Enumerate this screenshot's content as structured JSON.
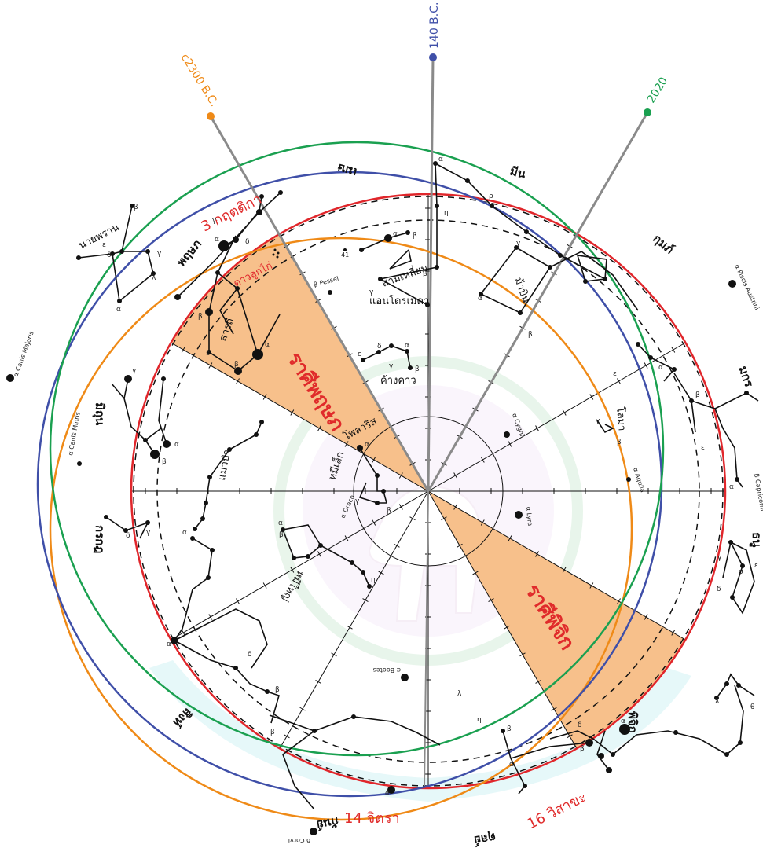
{
  "colors": {
    "c2300": "#ef8a17",
    "bc140": "#3f4fa8",
    "y2020": "#1aa050",
    "ecliptic": "#e0262b",
    "highlight": "#f7c08b",
    "line": "#111111",
    "pointer": "#8a8a8a"
  },
  "epochs": {
    "c2300": "c2300 B.C.",
    "bc140": "140 B.C.",
    "y2020": "2020"
  },
  "zodiac_labels": {
    "taurus": "ราศีพฤษภ",
    "scorpio": "ราศีพิจิก"
  },
  "red_labels": {
    "krittika": "3 กฤตติกา",
    "pleiades": "ดาวลูกไก่",
    "chitra": "14 จิตรา",
    "visakha": "16 วิสาขะ"
  },
  "zodiac_names": {
    "aries": "เมษ",
    "pisces": "มีน",
    "aquarius": "กุมภ์",
    "capricorn": "มกร",
    "sagittarius": "ธนู",
    "scorpio": "พิจิก",
    "libra": "ตุลย์",
    "virgo": "กันย์",
    "leo": "สิงห์",
    "cancer": "กรกฎ",
    "gemini": "มิถุน",
    "taurus": "พฤษภ"
  },
  "constellations": {
    "perseus": "นายพราน",
    "andromeda": "แอนโดรเมดา",
    "triangulum": "สามเหลี่ยม",
    "pegasus": "ม้าบิน",
    "cassiopeia": "ค้างคาว",
    "auriga": "สารถี",
    "cepheus": "โพลาริส",
    "ursa_minor": "หมีเล็ก",
    "ursa_major": "หมีใหญ่",
    "lynx": "แมวป่า",
    "delphinus": "โลมา"
  },
  "star_names": {
    "canis_majoris": "α Canis Majoris",
    "canis_minoris": "α Canis Minris",
    "piscis_austrini": "α Piscis Austrini",
    "capricorni": "β Capricorni",
    "aquila": "α Aquila",
    "lyra": "α Lyra",
    "cygni": "α Cygni",
    "draco": "α Draco",
    "bootes": "α Bootes",
    "corvi": "δ Corvi",
    "pessei": "β Pessei",
    "star41": "41"
  }
}
